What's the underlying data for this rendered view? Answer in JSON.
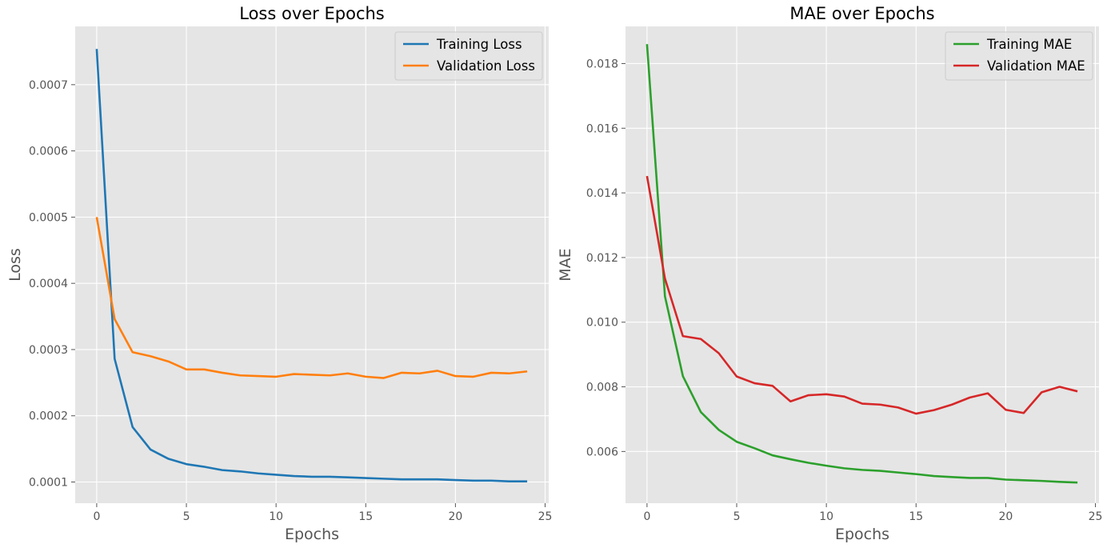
{
  "chart_data": [
    {
      "type": "line",
      "title": "Loss over Epochs",
      "xlabel": "Epochs",
      "ylabel": "Loss",
      "xlim": [
        -1.2,
        25.2
      ],
      "ylim": [
        6.8e-05,
        0.000788
      ],
      "x_ticks": [
        0,
        5,
        10,
        15,
        20,
        25
      ],
      "y_ticks": [
        0.0001,
        0.0002,
        0.0003,
        0.0004,
        0.0005,
        0.0006,
        0.0007
      ],
      "y_tick_labels": [
        "0.0001",
        "0.0002",
        "0.0003",
        "0.0004",
        "0.0005",
        "0.0006",
        "0.0007"
      ],
      "grid": true,
      "legend_position": "top-right",
      "x": [
        0,
        1,
        2,
        3,
        4,
        5,
        6,
        7,
        8,
        9,
        10,
        11,
        12,
        13,
        14,
        15,
        16,
        17,
        18,
        19,
        20,
        21,
        22,
        23,
        24
      ],
      "series": [
        {
          "name": "Training Loss",
          "color": "#1f77b4",
          "values": [
            0.000754,
            0.000286,
            0.000183,
            0.000149,
            0.000135,
            0.000127,
            0.000123,
            0.000118,
            0.000116,
            0.000113,
            0.000111,
            0.000109,
            0.000108,
            0.000108,
            0.000107,
            0.000106,
            0.000105,
            0.000104,
            0.000104,
            0.000104,
            0.000103,
            0.000102,
            0.000102,
            0.000101,
            0.000101
          ]
        },
        {
          "name": "Validation Loss",
          "color": "#ff7f0e",
          "values": [
            0.0005,
            0.000346,
            0.000296,
            0.00029,
            0.000282,
            0.00027,
            0.00027,
            0.000265,
            0.000261,
            0.00026,
            0.000259,
            0.000263,
            0.000262,
            0.000261,
            0.000264,
            0.000259,
            0.000257,
            0.000265,
            0.000264,
            0.000268,
            0.00026,
            0.000259,
            0.000265,
            0.000264,
            0.000267
          ]
        }
      ]
    },
    {
      "type": "line",
      "title": "MAE over Epochs",
      "xlabel": "Epochs",
      "ylabel": "MAE",
      "xlim": [
        -1.2,
        25.2
      ],
      "ylim": [
        0.0044,
        0.01915
      ],
      "x_ticks": [
        0,
        5,
        10,
        15,
        20,
        25
      ],
      "y_ticks": [
        0.006,
        0.008,
        0.01,
        0.012,
        0.014,
        0.016,
        0.018
      ],
      "y_tick_labels": [
        "0.006",
        "0.008",
        "0.010",
        "0.012",
        "0.014",
        "0.016",
        "0.018"
      ],
      "grid": true,
      "legend_position": "top-right",
      "x": [
        0,
        1,
        2,
        3,
        4,
        5,
        6,
        7,
        8,
        9,
        10,
        11,
        12,
        13,
        14,
        15,
        16,
        17,
        18,
        19,
        20,
        21,
        22,
        23,
        24
      ],
      "series": [
        {
          "name": "Training MAE",
          "color": "#2ca02c",
          "values": [
            0.0186,
            0.0108,
            0.00833,
            0.00722,
            0.00667,
            0.0063,
            0.0061,
            0.00588,
            0.00576,
            0.00565,
            0.00556,
            0.00548,
            0.00543,
            0.0054,
            0.00535,
            0.0053,
            0.00524,
            0.00521,
            0.00518,
            0.00518,
            0.00513,
            0.00511,
            0.00509,
            0.00506,
            0.00504
          ]
        },
        {
          "name": "Validation MAE",
          "color": "#d62728",
          "values": [
            0.01452,
            0.01135,
            0.00957,
            0.00948,
            0.00904,
            0.00832,
            0.00811,
            0.00803,
            0.00755,
            0.00774,
            0.00777,
            0.0077,
            0.00748,
            0.00745,
            0.00736,
            0.00717,
            0.00728,
            0.00745,
            0.00767,
            0.0078,
            0.00729,
            0.00719,
            0.00783,
            0.008,
            0.00786
          ]
        }
      ]
    }
  ]
}
